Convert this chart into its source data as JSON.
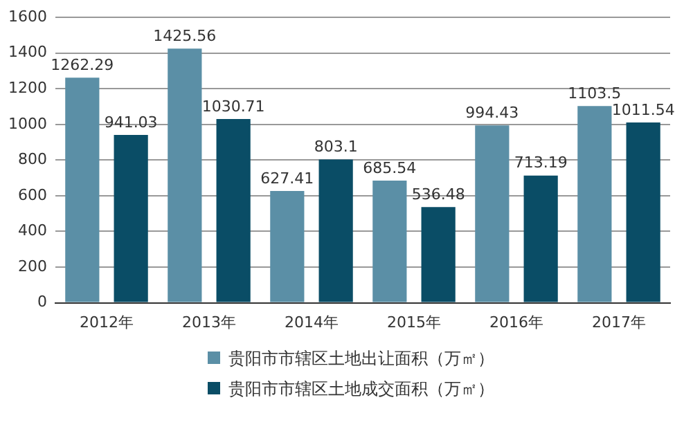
{
  "chart_data": {
    "type": "bar",
    "categories": [
      "2012年",
      "2013年",
      "2014年",
      "2015年",
      "2016年",
      "2017年"
    ],
    "series": [
      {
        "name": "贵阳市市辖区土地出让面积（万㎡）",
        "color": "#5b8fa6",
        "values": [
          1262.29,
          1425.56,
          627.41,
          685.54,
          994.43,
          1103.5
        ]
      },
      {
        "name": "贵阳市市辖区土地成交面积（万㎡）",
        "color": "#0a4d66",
        "values": [
          941.03,
          1030.71,
          803.1,
          536.48,
          713.19,
          1011.54
        ]
      }
    ],
    "ylim": [
      0,
      1600
    ],
    "yticks": [
      0,
      200,
      400,
      600,
      800,
      1000,
      1200,
      1400,
      1600
    ],
    "grid": "y",
    "legend": "bottom",
    "data_labels": true
  }
}
